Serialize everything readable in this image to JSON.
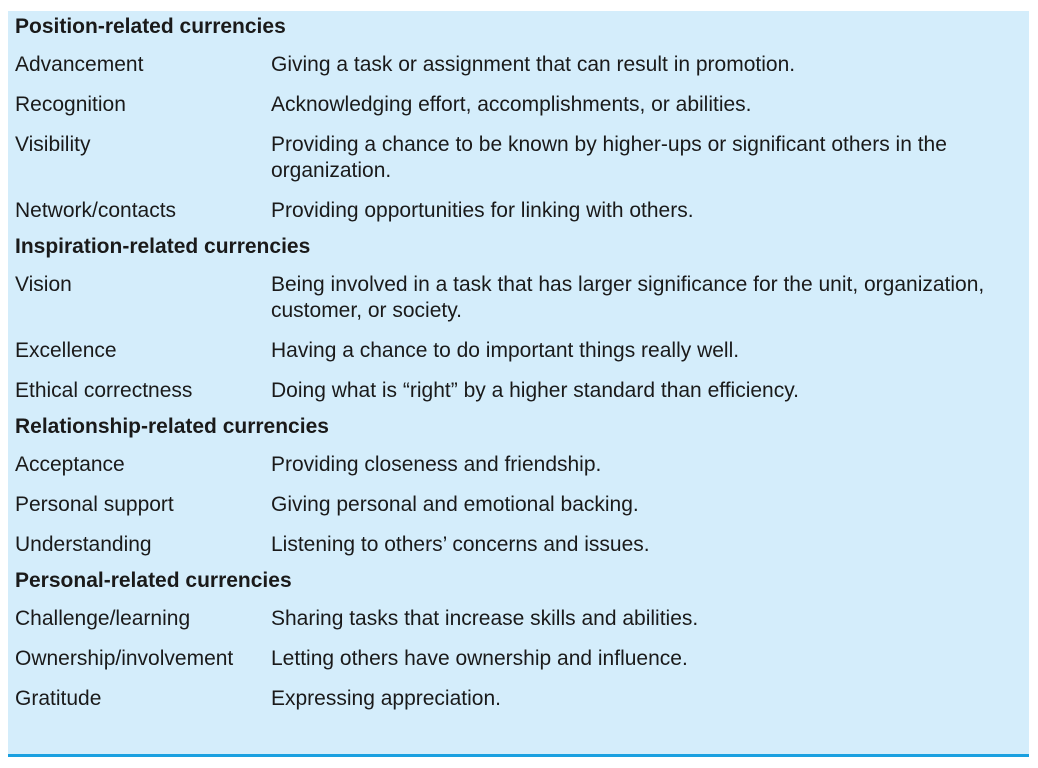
{
  "sections": [
    {
      "title": "Position-related currencies",
      "rows": [
        {
          "term": "Advancement",
          "desc": "Giving a task or assignment that can result in promotion."
        },
        {
          "term": "Recognition",
          "desc": "Acknowledging effort, accomplishments, or abilities."
        },
        {
          "term": "Visibility",
          "desc": "Providing a chance to be known by higher-ups or significant others in the organization."
        },
        {
          "term": "Network/contacts",
          "desc": "Providing opportunities for linking with others."
        }
      ]
    },
    {
      "title": "Inspiration-related currencies",
      "rows": [
        {
          "term": "Vision",
          "desc": "Being involved in a task that has larger significance for the unit, organization, customer, or society."
        },
        {
          "term": "Excellence",
          "desc": "Having a chance to do important things really well."
        },
        {
          "term": "Ethical correctness",
          "desc": "Doing what is “right” by a higher standard than efficiency."
        }
      ]
    },
    {
      "title": "Relationship-related currencies",
      "rows": [
        {
          "term": "Acceptance",
          "desc": "Providing closeness and friendship."
        },
        {
          "term": "Personal support",
          "desc": "Giving personal and emotional backing."
        },
        {
          "term": "Understanding",
          "desc": "Listening to others’ concerns and issues."
        }
      ]
    },
    {
      "title": "Personal-related currencies",
      "rows": [
        {
          "term": "Challenge/learning",
          "desc": "Sharing tasks that increase skills and abilities."
        },
        {
          "term": "Ownership/involvement",
          "desc": "Letting others have ownership and influence."
        },
        {
          "term": "Gratitude",
          "desc": "Expressing appreciation."
        }
      ]
    }
  ],
  "colors": {
    "background": "#d4edfb",
    "bottom_rule": "#1aa0e0",
    "text": "#1a1a1a"
  }
}
